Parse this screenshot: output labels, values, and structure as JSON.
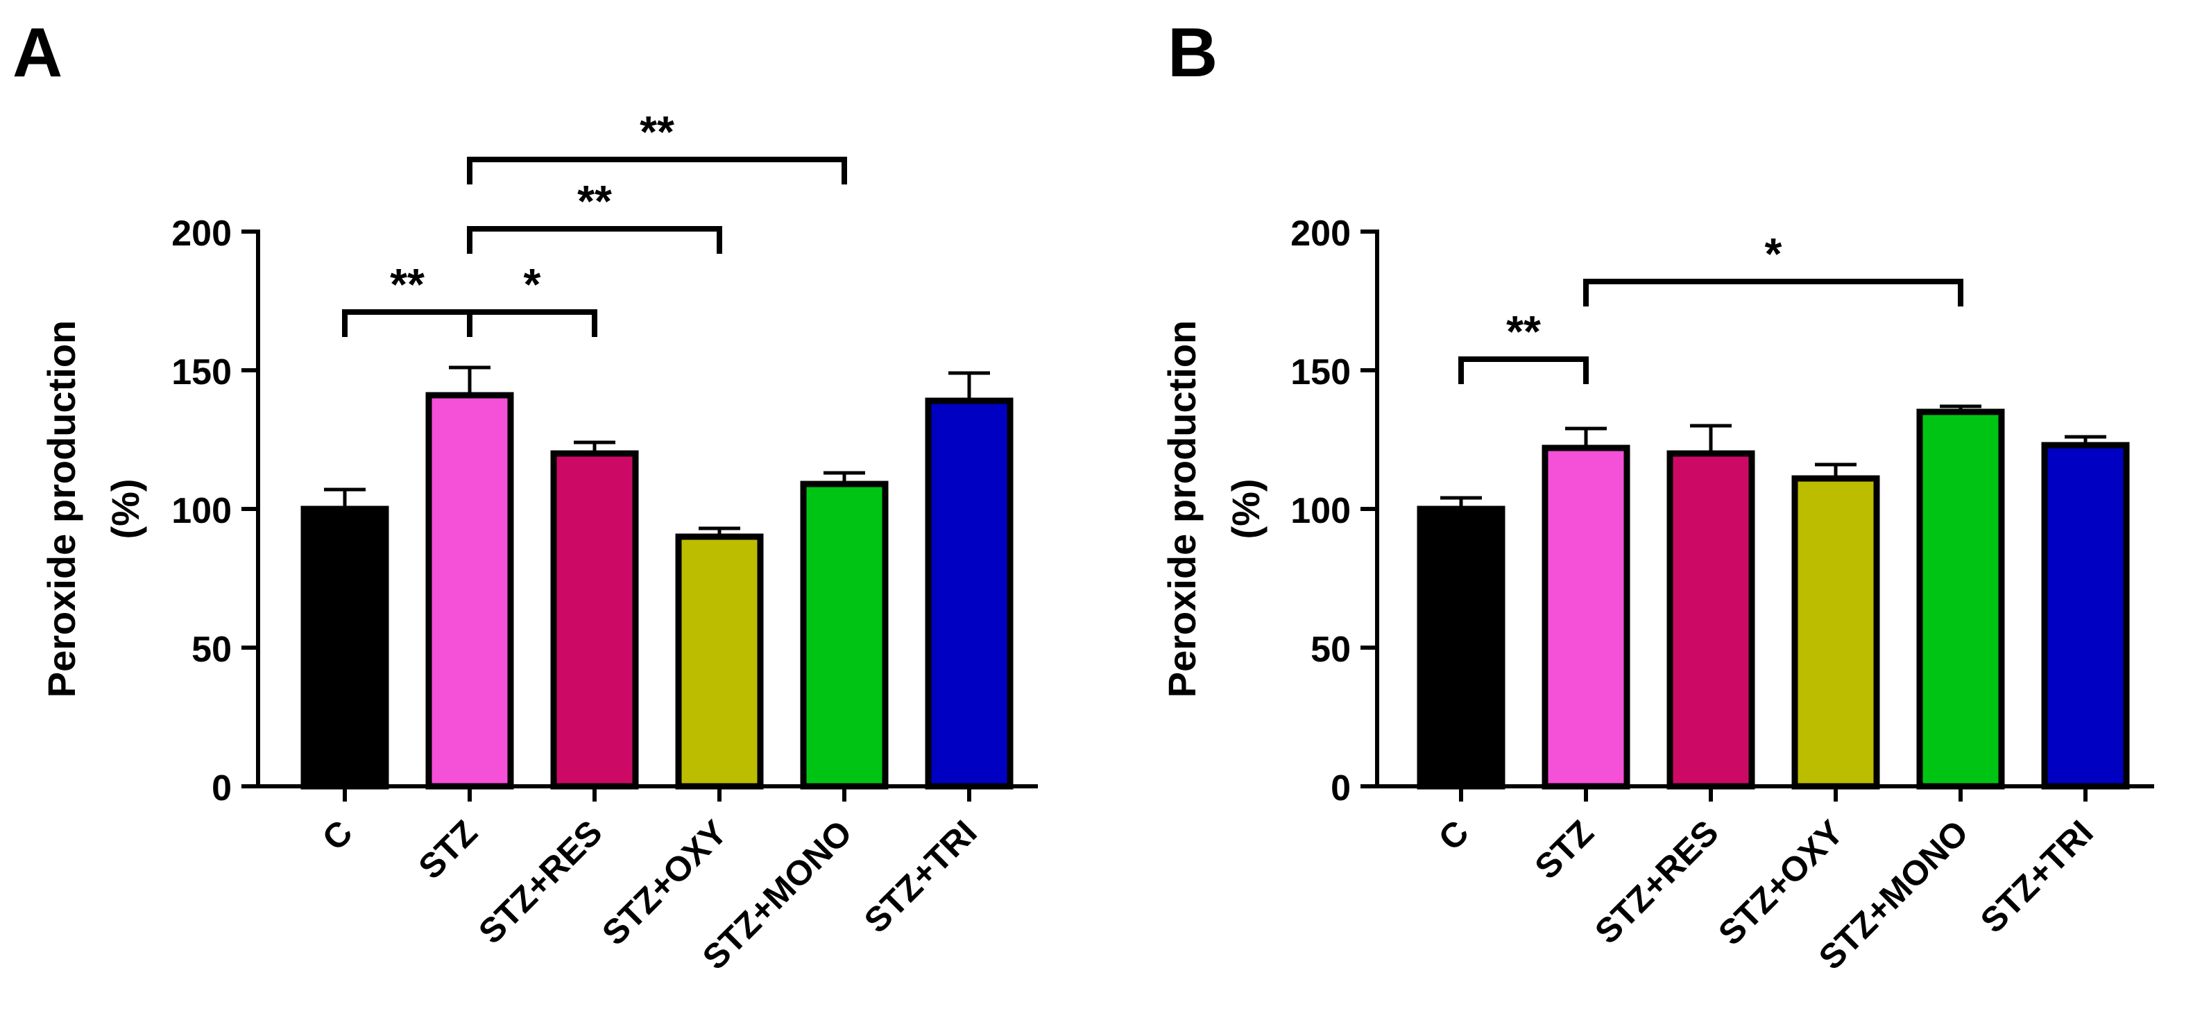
{
  "colors": {
    "axis": "#000000",
    "bar_outline": "#000000",
    "background": "#ffffff"
  },
  "chart_data": [
    {
      "panel_label": "A",
      "type": "bar",
      "ylabel_line1": "Peroxide production",
      "ylabel_line2": "(%)",
      "xlabel": "",
      "ylim": [
        0,
        200
      ],
      "yticks": [
        0,
        50,
        100,
        150,
        200
      ],
      "categories": [
        "C",
        "STZ",
        "STZ+RES",
        "STZ+OXY",
        "STZ+MONO",
        "STZ+TRI"
      ],
      "values": [
        100,
        141,
        120,
        90,
        109,
        139
      ],
      "errors": [
        7,
        10,
        4,
        3,
        4,
        10
      ],
      "bar_colors": [
        "#000000",
        "#f550d8",
        "#cc0a66",
        "#bdbd00",
        "#00c414",
        "#0000c2"
      ],
      "significance": [
        {
          "from": 0,
          "to": 1,
          "label": "**",
          "level_value": 171
        },
        {
          "from": 1,
          "to": 2,
          "label": "*",
          "level_value": 171
        },
        {
          "from": 1,
          "to": 3,
          "label": "**",
          "level_value": 201
        },
        {
          "from": 1,
          "to": 4,
          "label": "**",
          "level_value": 226
        }
      ]
    },
    {
      "panel_label": "B",
      "type": "bar",
      "ylabel_line1": "Peroxide production",
      "ylabel_line2": "(%)",
      "xlabel": "",
      "ylim": [
        0,
        200
      ],
      "yticks": [
        0,
        50,
        100,
        150,
        200
      ],
      "categories": [
        "C",
        "STZ",
        "STZ+RES",
        "STZ+OXY",
        "STZ+MONO",
        "STZ+TRI"
      ],
      "values": [
        100,
        122,
        120,
        111,
        135,
        123
      ],
      "errors": [
        4,
        7,
        10,
        5,
        2,
        3
      ],
      "bar_colors": [
        "#000000",
        "#f550d8",
        "#cc0a66",
        "#bdbd00",
        "#00c414",
        "#0000c2"
      ],
      "significance": [
        {
          "from": 0,
          "to": 1,
          "label": "**",
          "level_value": 154
        },
        {
          "from": 1,
          "to": 4,
          "label": "*",
          "level_value": 182
        }
      ]
    }
  ]
}
